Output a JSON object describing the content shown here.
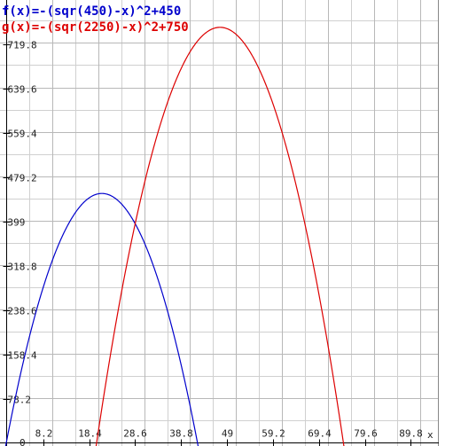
{
  "chart_data": {
    "type": "line",
    "title": "",
    "xlabel": "x",
    "ylabel": "",
    "xlim": [
      -1.4,
      96
    ],
    "ylim": [
      -6,
      799.3
    ],
    "grid": true,
    "legend_position": "top-left",
    "x_ticks": [
      {
        "value": 8.2,
        "label": "8.2"
      },
      {
        "value": 18.4,
        "label": "18.4"
      },
      {
        "value": 28.6,
        "label": "28.6"
      },
      {
        "value": 38.8,
        "label": "38.8"
      },
      {
        "value": 49,
        "label": "49"
      },
      {
        "value": 59.2,
        "label": "59.2"
      },
      {
        "value": 69.4,
        "label": "69.4"
      },
      {
        "value": 79.6,
        "label": "79.6"
      },
      {
        "value": 89.8,
        "label": "89.8"
      }
    ],
    "y_ticks": [
      {
        "value": 78.2,
        "label": "78.2"
      },
      {
        "value": 158.4,
        "label": "158.4"
      },
      {
        "value": 238.6,
        "label": "238.6"
      },
      {
        "value": 318.8,
        "label": "318.8"
      },
      {
        "value": 399,
        "label": "399"
      },
      {
        "value": 479.2,
        "label": "479.2"
      },
      {
        "value": 559.4,
        "label": "559.4"
      },
      {
        "value": 639.6,
        "label": "639.6"
      },
      {
        "value": 719.8,
        "label": "719.8"
      }
    ],
    "y_zero_label": "0",
    "series": [
      {
        "name": "f(x)=-(sqr(450)-x)^2+450",
        "color": "#0000cc",
        "formula_center": 21.2132,
        "formula_peak": 450
      },
      {
        "name": "g(x)=-(sqr(2250)-x)^2+750",
        "color": "#dd0000",
        "formula_center": 47.4342,
        "formula_peak": 750
      }
    ]
  }
}
